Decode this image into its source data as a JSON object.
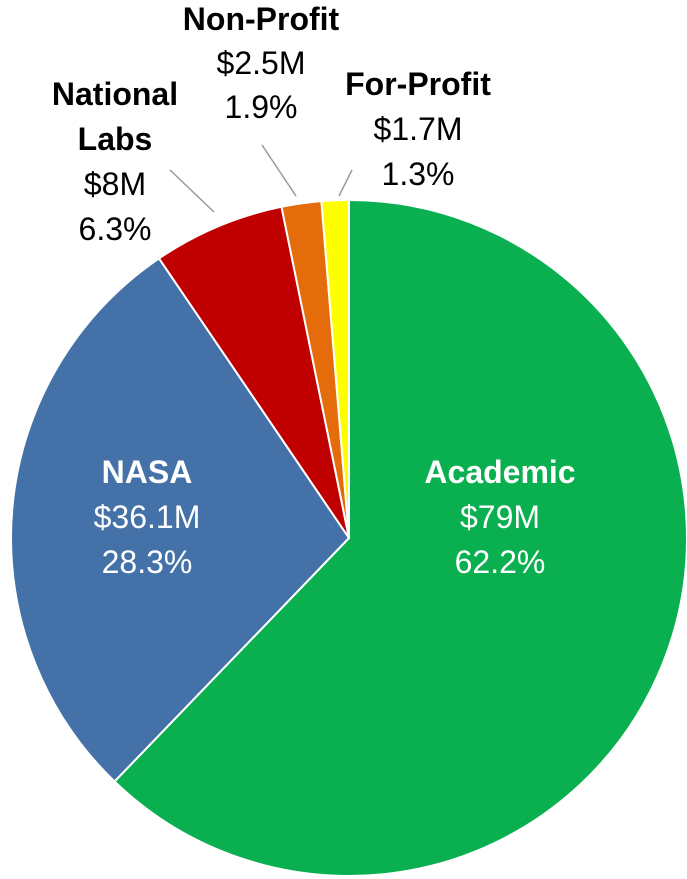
{
  "chart_data": {
    "type": "pie",
    "categories": [
      "Academic",
      "NASA",
      "National Labs",
      "Non-Profit",
      "For-Profit"
    ],
    "values": [
      62.2,
      28.3,
      6.3,
      1.9,
      1.3
    ],
    "value_labels": [
      "62.2%",
      "28.3%",
      "6.3%",
      "1.9%",
      "1.3%"
    ],
    "amounts": [
      79000000,
      36100000,
      8000000,
      2500000,
      1700000
    ],
    "amount_labels": [
      "$79M",
      "$36.1M",
      "$8M",
      "$2.5M",
      "$1.7M"
    ],
    "colors": [
      "#0aaf50",
      "#4472a8",
      "#c00000",
      "#e46c0a",
      "#ffff00"
    ]
  }
}
